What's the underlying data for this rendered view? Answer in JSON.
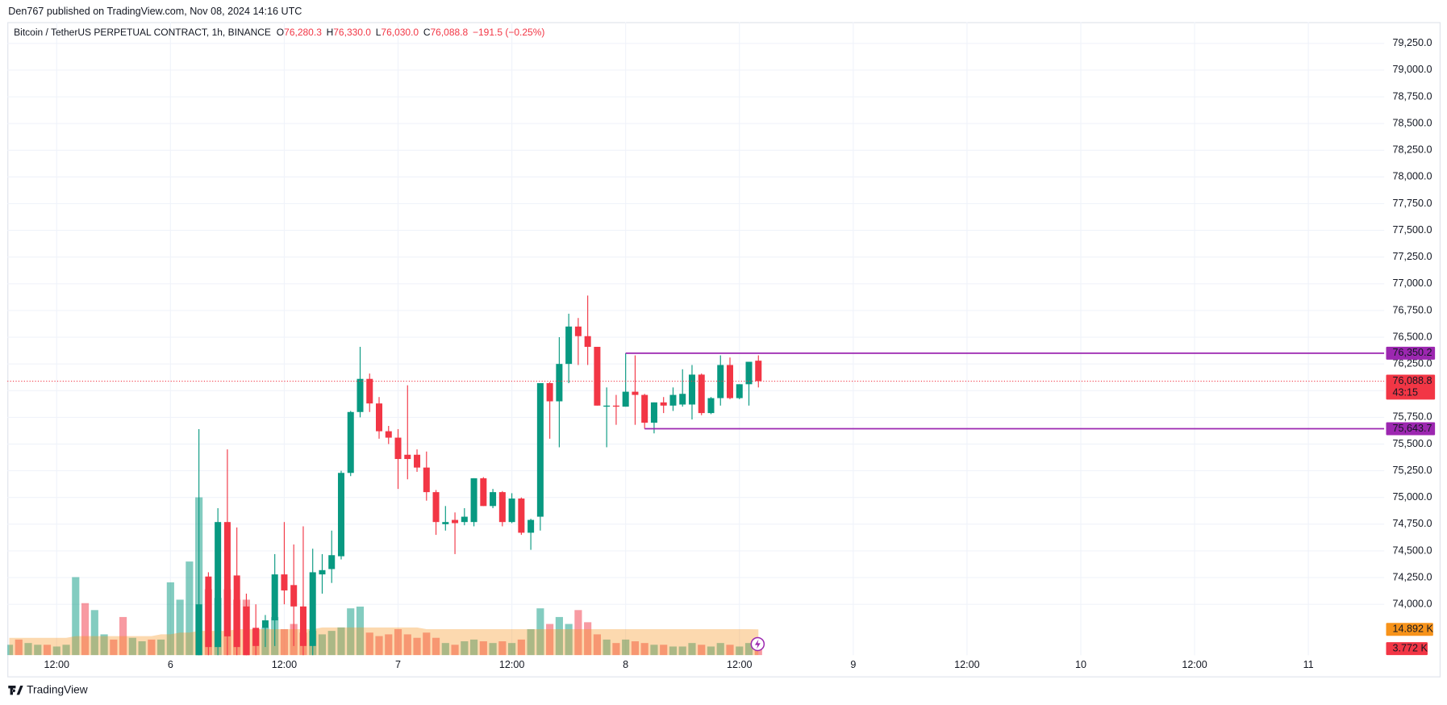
{
  "published": "Den767 published on TradingView.com, Nov 08, 2024 14:16 UTC",
  "footer": "TradingView",
  "chart_data": {
    "type": "candlestick",
    "symbol": "Bitcoin / TetherUS PERPETUAL CONTRACT, 1h, BINANCE",
    "ohlc_legend": [
      {
        "label": "O",
        "value": "76,280.3"
      },
      {
        "label": "H",
        "value": "76,330.0"
      },
      {
        "label": "L",
        "value": "76,030.0"
      },
      {
        "label": "C",
        "value": "76,088.8"
      }
    ],
    "change": "−191.5 (−0.25%)",
    "x": [
      7,
      8,
      9,
      10,
      11,
      12,
      13,
      14,
      15,
      16,
      17,
      18,
      19,
      20,
      21,
      22,
      23,
      24,
      25,
      26,
      27,
      28,
      29,
      30,
      31,
      32,
      33,
      34,
      35,
      36,
      37,
      38,
      39,
      40,
      41,
      42,
      43,
      44,
      45,
      46,
      47,
      48,
      49,
      50,
      51,
      52,
      53,
      54,
      55,
      56,
      57,
      58,
      59,
      60,
      61,
      62,
      63,
      64,
      65,
      66,
      67,
      68,
      69,
      70,
      71,
      72,
      73,
      74,
      75,
      76,
      77,
      78,
      79,
      80,
      81,
      82,
      83,
      84,
      85,
      86
    ],
    "open": [
      null,
      null,
      null,
      null,
      null,
      null,
      null,
      null,
      null,
      null,
      null,
      null,
      null,
      null,
      null,
      null,
      null,
      null,
      null,
      null,
      73300,
      74260,
      73600,
      74770,
      74270,
      73980,
      73780,
      73780,
      73850,
      74280,
      74180,
      73980,
      73610,
      74280,
      74330,
      74450,
      75230,
      75800,
      76110,
      75880,
      75620,
      75560,
      75400,
      75400,
      75280,
      75050,
      74750,
      74790,
      74770,
      74770,
      75180,
      74920,
      75050,
      74770,
      74990,
      74670,
      74820,
      76070,
      75900,
      76250,
      76600,
      76510,
      76410,
      75850,
      75860,
      75850,
      75990,
      75960,
      75700,
      75890,
      75860,
      75870,
      75870,
      76150,
      75790,
      75930,
      76240,
      75930,
      76060,
      76280.3
    ],
    "high": [
      null,
      null,
      null,
      null,
      null,
      null,
      null,
      null,
      null,
      null,
      null,
      null,
      null,
      null,
      null,
      null,
      null,
      null,
      null,
      null,
      75640,
      74300,
      74900,
      75450,
      74720,
      74100,
      74000,
      73900,
      74470,
      74770,
      74560,
      74730,
      74520,
      74470,
      74690,
      75250,
      75810,
      76410,
      76160,
      75940,
      75670,
      75640,
      76050,
      75450,
      75430,
      75070,
      74920,
      74860,
      74900,
      75180,
      75190,
      75080,
      75060,
      75040,
      75000,
      74800,
      76070,
      76080,
      76500,
      76720,
      76680,
      76890,
      76410,
      76030,
      75960,
      76350.2,
      76330,
      75970,
      75890,
      75940,
      76030,
      76200,
      76240,
      76160,
      75940,
      76330,
      76310,
      76060,
      76270,
      76330
    ],
    "low": [
      null,
      null,
      null,
      null,
      null,
      null,
      null,
      null,
      null,
      null,
      null,
      null,
      null,
      null,
      null,
      null,
      null,
      null,
      null,
      null,
      73200,
      73400,
      73500,
      73500,
      73400,
      73300,
      73400,
      73600,
      73610,
      74000,
      73610,
      73500,
      73500,
      74100,
      74200,
      74420,
      75200,
      75750,
      75800,
      75550,
      75500,
      75080,
      75170,
      75240,
      74970,
      74650,
      74690,
      74470,
      74740,
      74730,
      74920,
      74900,
      74730,
      74760,
      74650,
      74510,
      74690,
      75550,
      75470,
      76070,
      76240,
      76240,
      75860,
      75470,
      75680,
      75850,
      75680,
      75643.7,
      75600,
      75790,
      75810,
      75850,
      75730,
      75770,
      75780,
      75860,
      75920,
      75920,
      75860,
      76030
    ],
    "close": [
      null,
      null,
      null,
      null,
      null,
      null,
      null,
      null,
      null,
      null,
      null,
      null,
      null,
      null,
      null,
      null,
      null,
      null,
      null,
      null,
      74000,
      73600,
      74770,
      73700,
      73600,
      73500,
      73610,
      73850,
      74280,
      74130,
      73980,
      73610,
      74300,
      74320,
      74460,
      75230,
      75800,
      76110,
      75880,
      75620,
      75560,
      75360,
      75360,
      75280,
      75050,
      74770,
      74770,
      74760,
      74820,
      75180,
      74920,
      75050,
      74770,
      74990,
      74670,
      74790,
      76070,
      75900,
      76250,
      76600,
      76510,
      76410,
      75860,
      75860,
      75850,
      75990,
      75960,
      75700,
      75890,
      75860,
      75960,
      75970,
      76150,
      75790,
      75930,
      76240,
      75930,
      76060,
      76270,
      76088.8
    ],
    "up_color": "#089981",
    "down_color": "#f23645",
    "xlim": [
      6.8,
      152
    ],
    "xticks": [
      {
        "value": 12,
        "label": "12:00"
      },
      {
        "value": 24,
        "label": "6"
      },
      {
        "value": 36,
        "label": "12:00"
      },
      {
        "value": 48,
        "label": "7"
      },
      {
        "value": 60,
        "label": "12:00"
      },
      {
        "value": 72,
        "label": "8"
      },
      {
        "value": 84,
        "label": "12:00"
      },
      {
        "value": 96,
        "label": "9"
      },
      {
        "value": 108,
        "label": "12:00"
      },
      {
        "value": 120,
        "label": "10"
      },
      {
        "value": 132,
        "label": "12:00"
      },
      {
        "value": 144,
        "label": "11"
      }
    ],
    "ylim": [
      73524,
      79449
    ],
    "yticks": [
      {
        "value": 74000,
        "label": "74,000.0"
      },
      {
        "value": 74250,
        "label": "74,250.0"
      },
      {
        "value": 74500,
        "label": "74,500.0"
      },
      {
        "value": 74750,
        "label": "74,750.0"
      },
      {
        "value": 75000,
        "label": "75,000.0"
      },
      {
        "value": 75250,
        "label": "75,250.0"
      },
      {
        "value": 75500,
        "label": "75,500.0"
      },
      {
        "value": 75750,
        "label": "75,750.0"
      },
      {
        "value": 76000,
        "label": "76,000.0"
      },
      {
        "value": 76250,
        "label": "76,250.0"
      },
      {
        "value": 76500,
        "label": "76,500.0"
      },
      {
        "value": 76750,
        "label": "76,750.0"
      },
      {
        "value": 77000,
        "label": "77,000.0"
      },
      {
        "value": 77250,
        "label": "77,250.0"
      },
      {
        "value": 77500,
        "label": "77,500.0"
      },
      {
        "value": 77750,
        "label": "77,750.0"
      },
      {
        "value": 78000,
        "label": "78,000.0"
      },
      {
        "value": 78250,
        "label": "78,250.0"
      },
      {
        "value": 78500,
        "label": "78,500.0"
      },
      {
        "value": 78750,
        "label": "78,750.0"
      },
      {
        "value": 79000,
        "label": "79,000.0"
      },
      {
        "value": 79250,
        "label": "79,250.0"
      }
    ],
    "grid": true,
    "volume": {
      "values": [
        6,
        9,
        7,
        6,
        6,
        5,
        6,
        45,
        30,
        26,
        12,
        9,
        22,
        10,
        8,
        9,
        9,
        42,
        32,
        54,
        91,
        38,
        33,
        38,
        32,
        32,
        15,
        16,
        22,
        15,
        18,
        13,
        14,
        12,
        14,
        16,
        27,
        28,
        13,
        11,
        12,
        15,
        12,
        10,
        13,
        10,
        7,
        6,
        8,
        9,
        8,
        7,
        8,
        7,
        9,
        15,
        27,
        18,
        22,
        18,
        26,
        19,
        12,
        9,
        7,
        9,
        8,
        7,
        6,
        6,
        5,
        5,
        7,
        6,
        5,
        7,
        6,
        5,
        7,
        3.772
      ],
      "rising": [
        true,
        false,
        true,
        true,
        false,
        true,
        true,
        true,
        false,
        true,
        true,
        false,
        false,
        true,
        true,
        false,
        true,
        true,
        true,
        true,
        true,
        false,
        true,
        false,
        false,
        false,
        false,
        true,
        true,
        false,
        false,
        false,
        true,
        true,
        true,
        true,
        true,
        true,
        false,
        false,
        false,
        false,
        false,
        false,
        false,
        false,
        true,
        false,
        true,
        true,
        false,
        true,
        false,
        true,
        false,
        true,
        true,
        false,
        true,
        true,
        false,
        false,
        false,
        true,
        false,
        true,
        false,
        false,
        true,
        false,
        true,
        true,
        true,
        false,
        true,
        true,
        false,
        true,
        true,
        false
      ],
      "ma": [
        10,
        10,
        10,
        10,
        10,
        10,
        10,
        11,
        11,
        11,
        11,
        11,
        11,
        11,
        11,
        11,
        12,
        12,
        13,
        13,
        14,
        14,
        14,
        14,
        15,
        15,
        15,
        15,
        15,
        15,
        15,
        15,
        15,
        16,
        16,
        16,
        16,
        16,
        16,
        16,
        16,
        16,
        16,
        16,
        15,
        15,
        15,
        15,
        15,
        15,
        15,
        15,
        15,
        15,
        15,
        15,
        15,
        15,
        15,
        15,
        15,
        15,
        15,
        15,
        15,
        15,
        15,
        15,
        15,
        15,
        15,
        15,
        15,
        15,
        15,
        15,
        15,
        15,
        15,
        14.892
      ],
      "ma_color": "#f7931a",
      "ma_last_label": "14.892 K",
      "last_label": "3.772 K",
      "lim": [
        0,
        365
      ]
    },
    "levels": [
      {
        "value": 76350.2,
        "label": "76,350.2",
        "from": 72,
        "color": "#9c27b0"
      },
      {
        "value": 75643.7,
        "label": "75,643.7",
        "from": 74,
        "color": "#9c27b0"
      }
    ],
    "last_price": {
      "value": 76088.8,
      "label": "76,088.8",
      "countdown": "43:15"
    }
  }
}
